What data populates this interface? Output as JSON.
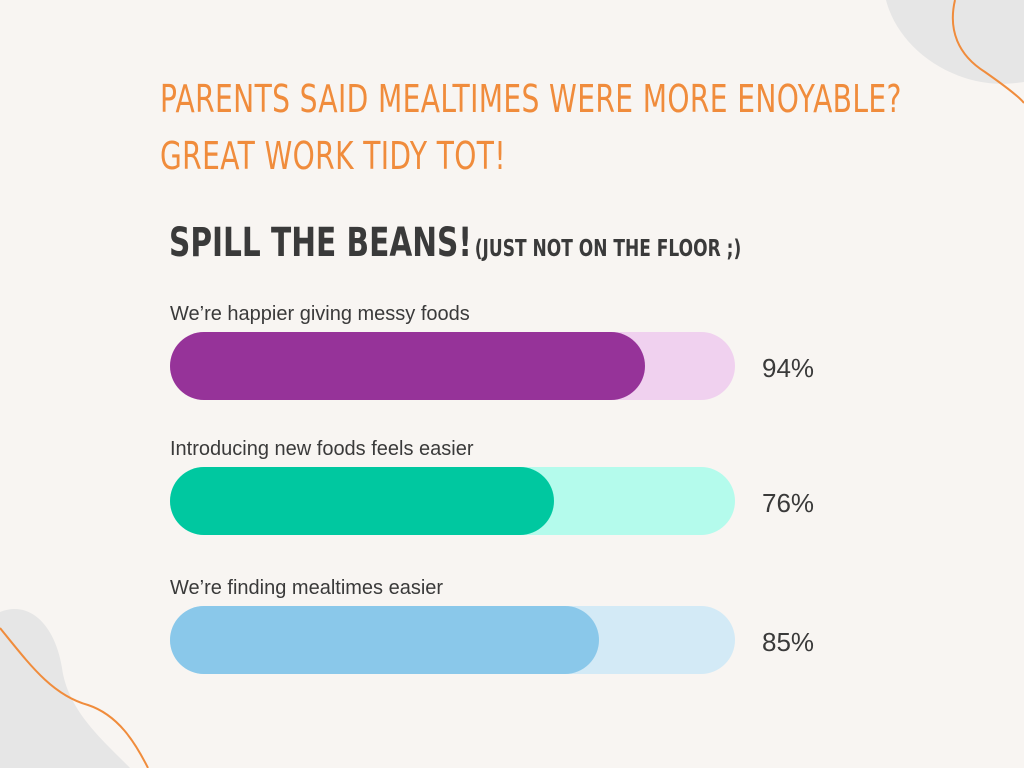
{
  "headline": {
    "line1": "Parents said mealtimes were more enoyable?",
    "line2": "Great work Tidy Tot!"
  },
  "subheading": {
    "main": "Spill the beans!",
    "aside": "(just not on the floor ;)"
  },
  "chart_data": {
    "type": "bar",
    "orientation": "horizontal",
    "xlim": [
      0,
      100
    ],
    "bars": [
      {
        "label": "We’re happier giving messy foods",
        "value": 94,
        "display": "94%",
        "color": "#963399",
        "track_color": "#f0d1ef"
      },
      {
        "label": "Introducing new foods feels easier",
        "value": 76,
        "display": "76%",
        "color": "#00c8a0",
        "track_color": "#b4fbec"
      },
      {
        "label": "We’re finding mealtimes easier",
        "value": 85,
        "display": "85%",
        "color": "#8ac8ea",
        "track_color": "#d3eaf6"
      }
    ]
  },
  "colors": {
    "background": "#f8f5f2",
    "accent": "#f08c3c",
    "text": "#3a3a3a",
    "blob": "#e6e6e6"
  }
}
